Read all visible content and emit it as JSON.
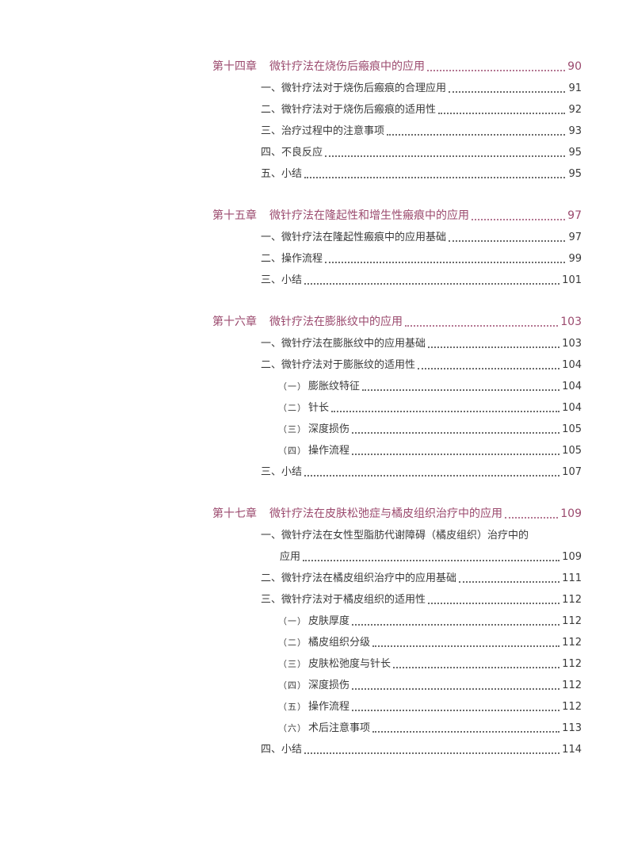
{
  "accent_color": "#9b4a6e",
  "chapters": [
    {
      "label": "第十四章",
      "title": "微针疗法在烧伤后瘢痕中的应用",
      "page": "90",
      "items": [
        {
          "level": 1,
          "label": "一、",
          "title": "微针疗法对于烧伤后瘢痕的合理应用",
          "page": "91"
        },
        {
          "level": 1,
          "label": "二、",
          "title": "微针疗法对于烧伤后瘢痕的适用性",
          "page": "92"
        },
        {
          "level": 1,
          "label": "三、",
          "title": "治疗过程中的注意事项",
          "page": "93"
        },
        {
          "level": 1,
          "label": "四、",
          "title": "不良反应",
          "page": "95"
        },
        {
          "level": 1,
          "label": "五、",
          "title": "小结",
          "page": "95"
        }
      ]
    },
    {
      "label": "第十五章",
      "title": "微针疗法在隆起性和增生性瘢痕中的应用",
      "page": "97",
      "items": [
        {
          "level": 1,
          "label": "一、",
          "title": "微针疗法在隆起性瘢痕中的应用基础",
          "page": "97"
        },
        {
          "level": 1,
          "label": "二、",
          "title": "操作流程",
          "page": "99"
        },
        {
          "level": 1,
          "label": "三、",
          "title": "小结",
          "page": "101"
        }
      ]
    },
    {
      "label": "第十六章",
      "title": "微针疗法在膨胀纹中的应用",
      "page": "103",
      "items": [
        {
          "level": 1,
          "label": "一、",
          "title": "微针疗法在膨胀纹中的应用基础",
          "page": "103"
        },
        {
          "level": 1,
          "label": "二、",
          "title": "微针疗法对于膨胀纹的适用性",
          "page": "104"
        },
        {
          "level": 2,
          "label": "（一）",
          "title": "膨胀纹特征",
          "page": "104"
        },
        {
          "level": 2,
          "label": "（二）",
          "title": "针长",
          "page": "104"
        },
        {
          "level": 2,
          "label": "（三）",
          "title": "深度损伤",
          "page": "105"
        },
        {
          "level": 2,
          "label": "（四）",
          "title": "操作流程",
          "page": "105"
        },
        {
          "level": 1,
          "label": "三、",
          "title": "小结",
          "page": "107"
        }
      ]
    },
    {
      "label": "第十七章",
      "title": "微针疗法在皮肤松弛症与橘皮组织治疗中的应用",
      "page": "109",
      "items": [
        {
          "level": 1,
          "label": "一、",
          "title": "微针疗法在女性型脂肪代谢障碍（橘皮组织）治疗中的",
          "continuation": "应用",
          "page": "109"
        },
        {
          "level": 1,
          "label": "二、",
          "title": "微针疗法在橘皮组织治疗中的应用基础",
          "page": "111"
        },
        {
          "level": 1,
          "label": "三、",
          "title": "微针疗法对于橘皮组织的适用性",
          "page": "112"
        },
        {
          "level": 2,
          "label": "（一）",
          "title": "皮肤厚度",
          "page": "112"
        },
        {
          "level": 2,
          "label": "（二）",
          "title": "橘皮组织分级",
          "page": "112"
        },
        {
          "level": 2,
          "label": "（三）",
          "title": "皮肤松弛度与针长",
          "page": "112"
        },
        {
          "level": 2,
          "label": "（四）",
          "title": "深度损伤",
          "page": "112"
        },
        {
          "level": 2,
          "label": "（五）",
          "title": "操作流程",
          "page": "112"
        },
        {
          "level": 2,
          "label": "（六）",
          "title": "术后注意事项",
          "page": "113"
        },
        {
          "level": 1,
          "label": "四、",
          "title": "小结",
          "page": "114"
        }
      ]
    }
  ]
}
